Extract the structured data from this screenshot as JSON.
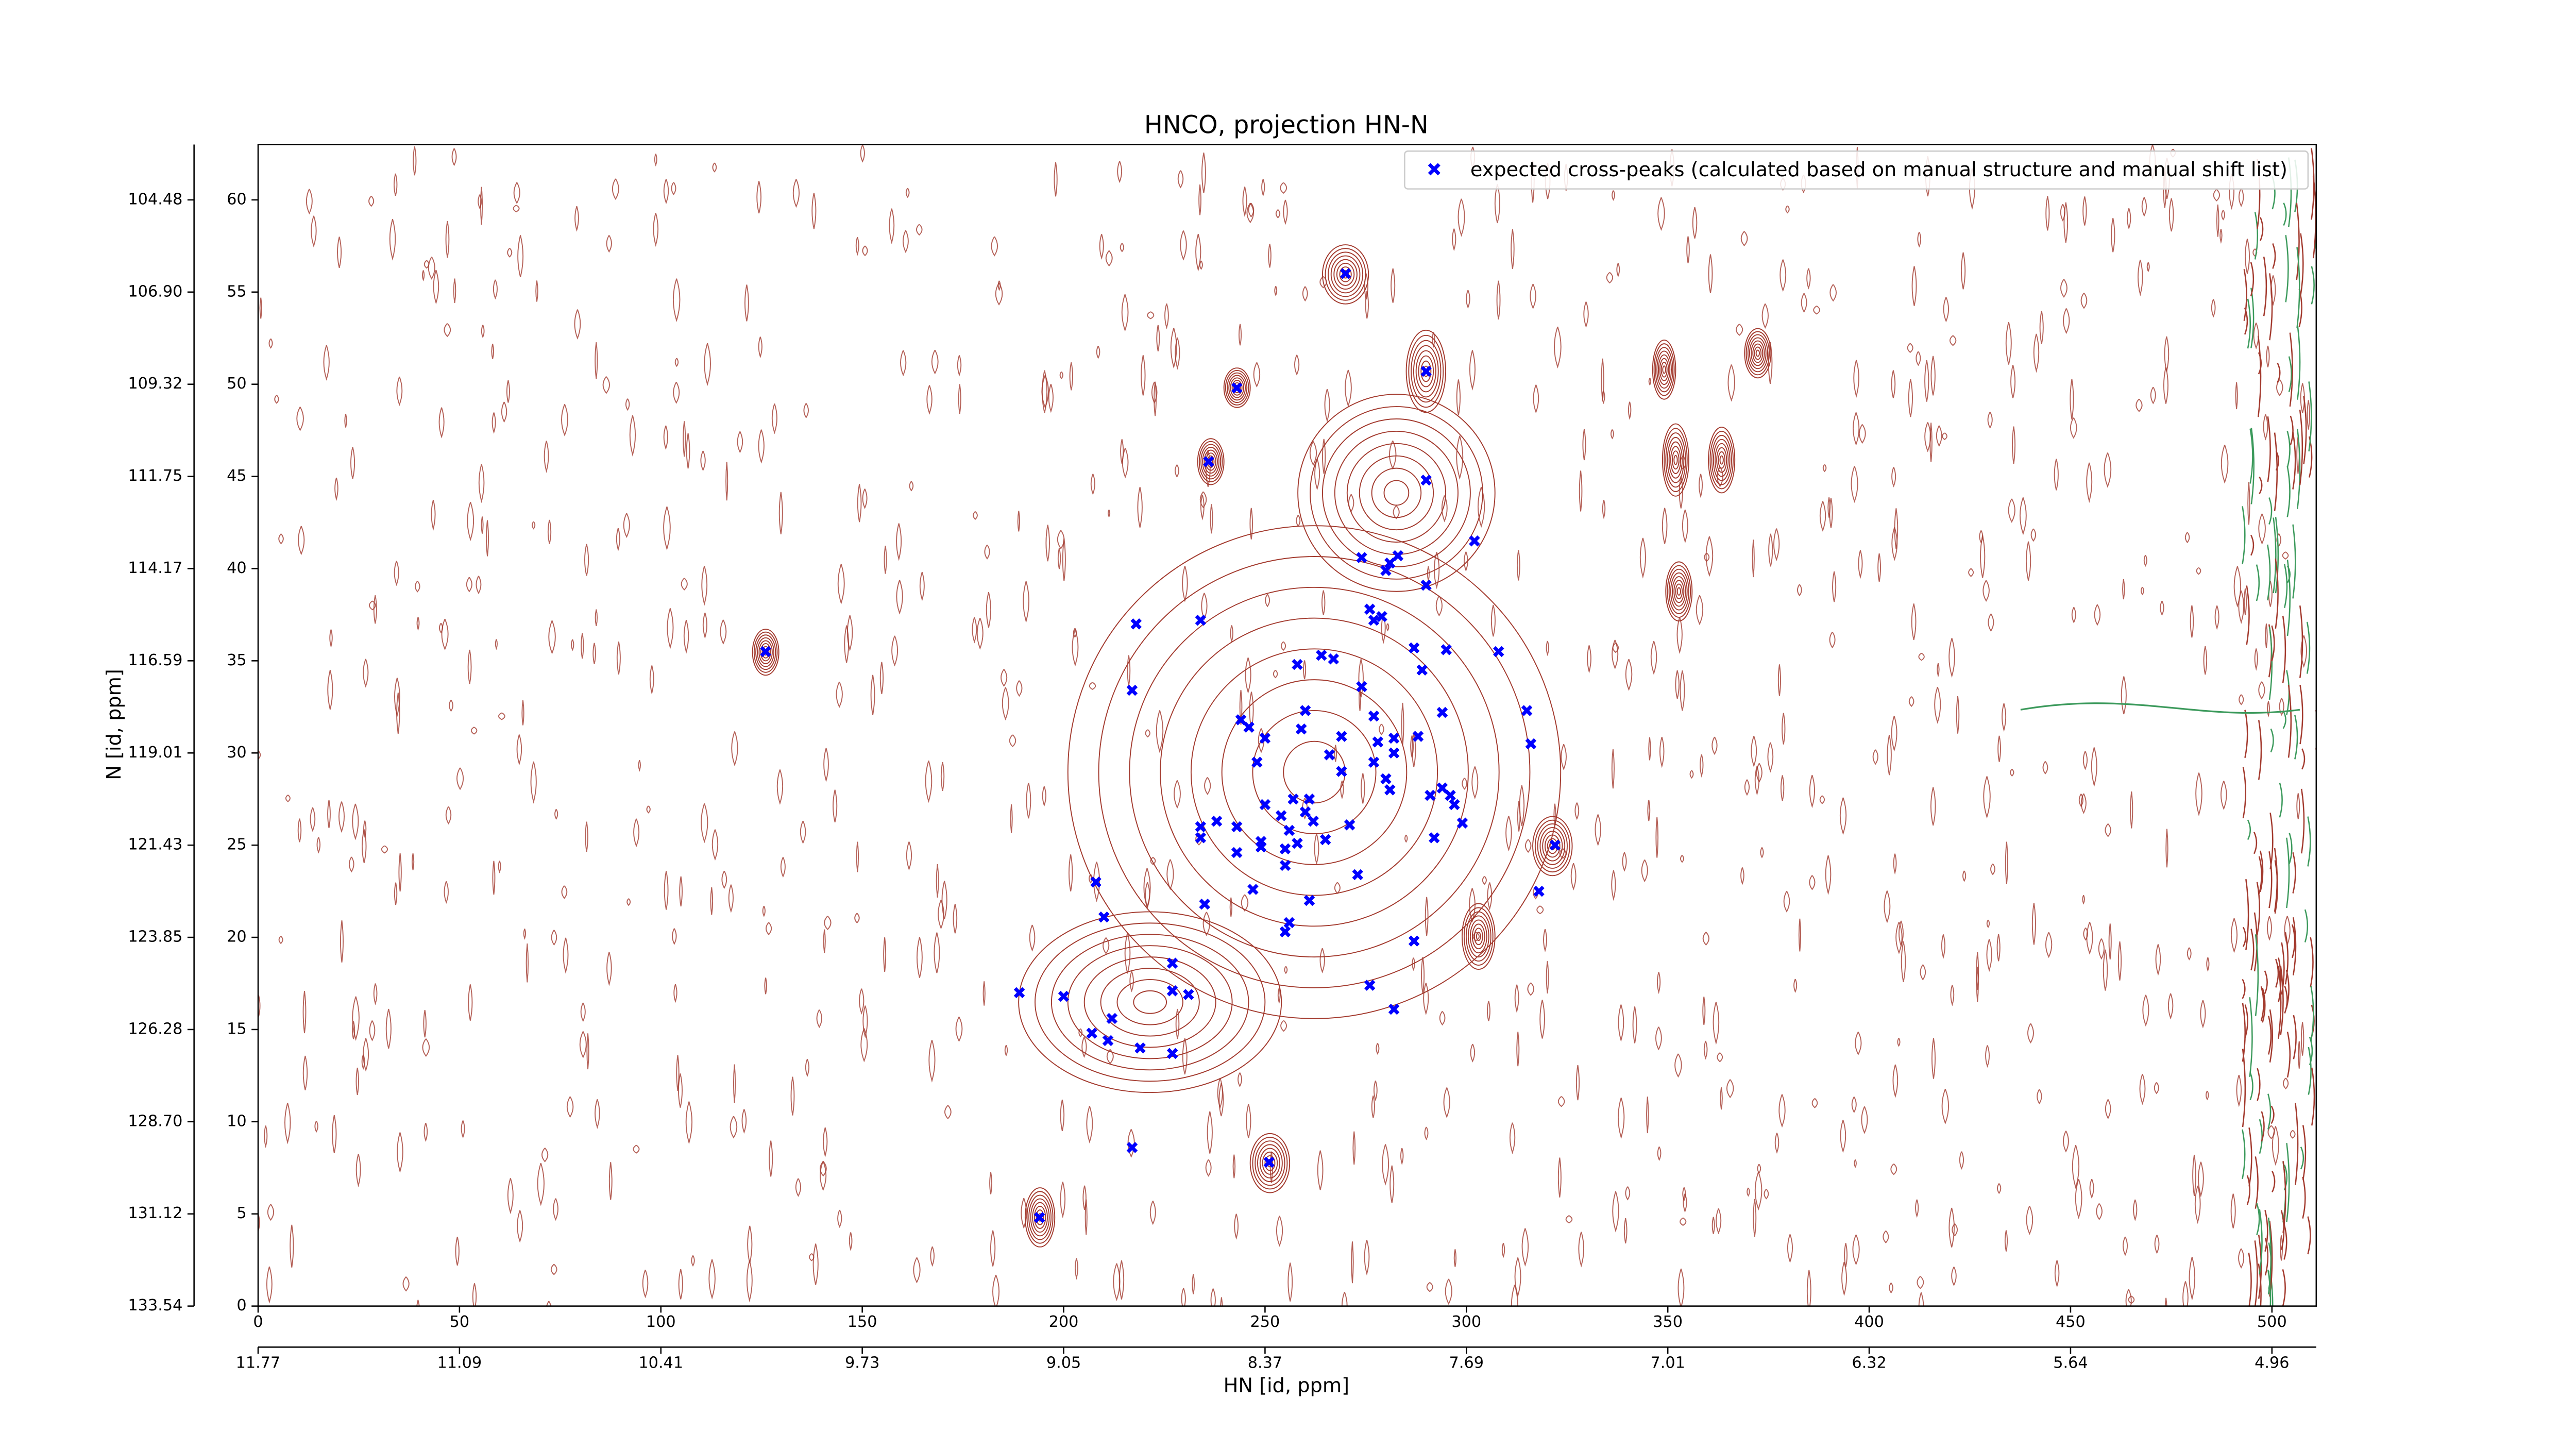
{
  "chart_data": {
    "type": "scatter",
    "title": "HNCO, projection HN-N",
    "xlabel": "HN [id, ppm]",
    "ylabel": "N [id, ppm]",
    "xlim": [
      0,
      511
    ],
    "ylim": [
      0,
      63
    ],
    "xticks": [
      0,
      50,
      100,
      150,
      200,
      250,
      300,
      350,
      400,
      450,
      500
    ],
    "yticks": [
      0,
      5,
      10,
      15,
      20,
      25,
      30,
      35,
      40,
      45,
      50,
      55,
      60
    ],
    "x2ticks": [
      {
        "value": 0,
        "label": "11.77"
      },
      {
        "value": 50,
        "label": "11.09"
      },
      {
        "value": 100,
        "label": "10.41"
      },
      {
        "value": 150,
        "label": "9.73"
      },
      {
        "value": 200,
        "label": "9.05"
      },
      {
        "value": 250,
        "label": "8.37"
      },
      {
        "value": 300,
        "label": "7.69"
      },
      {
        "value": 350,
        "label": "7.01"
      },
      {
        "value": 400,
        "label": "6.32"
      },
      {
        "value": 450,
        "label": "5.64"
      },
      {
        "value": 500,
        "label": "4.96"
      }
    ],
    "y2ticks": [
      {
        "value": 0,
        "label": "133.54"
      },
      {
        "value": 5,
        "label": "131.12"
      },
      {
        "value": 10,
        "label": "128.70"
      },
      {
        "value": 15,
        "label": "126.28"
      },
      {
        "value": 20,
        "label": "123.85"
      },
      {
        "value": 25,
        "label": "121.43"
      },
      {
        "value": 30,
        "label": "119.01"
      },
      {
        "value": 35,
        "label": "116.59"
      },
      {
        "value": 40,
        "label": "114.17"
      },
      {
        "value": 45,
        "label": "111.75"
      },
      {
        "value": 50,
        "label": "109.32"
      },
      {
        "value": 55,
        "label": "106.90"
      },
      {
        "value": 60,
        "label": "104.48"
      }
    ],
    "legend": "upper right",
    "series": [
      {
        "name": "expected cross-peaks (calculated based on manual structure and manual shift list)",
        "color": "#0000ff",
        "x": [
          126,
          270,
          290,
          243,
          236,
          290,
          302,
          274,
          283,
          281,
          280,
          290,
          276,
          277,
          279,
          218,
          234,
          308,
          264,
          267,
          287,
          295,
          258,
          289,
          217,
          274,
          244,
          246,
          260,
          277,
          294,
          315,
          259,
          278,
          282,
          269,
          288,
          316,
          250,
          282,
          248,
          266,
          269,
          277,
          280,
          281,
          294,
          291,
          297,
          250,
          257,
          261,
          260,
          296,
          238,
          254,
          262,
          299,
          234,
          243,
          256,
          271,
          234,
          249,
          249,
          258,
          265,
          292,
          322,
          243,
          255,
          255,
          273,
          208,
          247,
          318,
          235,
          261,
          210,
          256,
          255,
          287,
          227,
          189,
          200,
          227,
          231,
          276,
          282,
          212,
          207,
          211,
          219,
          227,
          217,
          251,
          194
        ],
        "y": [
          35.5,
          56,
          50.7,
          49.8,
          45.8,
          44.8,
          41.5,
          40.6,
          40.7,
          40.3,
          39.9,
          39.1,
          37.8,
          37.2,
          37.4,
          37,
          37.2,
          35.5,
          35.3,
          35.1,
          35.7,
          35.6,
          34.8,
          34.5,
          33.4,
          33.6,
          31.8,
          31.4,
          32.3,
          32,
          32.2,
          32.3,
          31.3,
          30.6,
          30.8,
          30.9,
          30.9,
          30.5,
          30.8,
          30,
          29.5,
          29.9,
          29,
          29.5,
          28.6,
          28,
          28.1,
          27.7,
          27.2,
          27.2,
          27.5,
          27.5,
          26.8,
          27.7,
          26.3,
          26.6,
          26.3,
          26.2,
          26,
          26,
          25.8,
          26.1,
          25.4,
          25.2,
          24.9,
          25.1,
          25.3,
          25.4,
          25,
          24.6,
          24.8,
          23.9,
          23.4,
          23,
          22.6,
          22.5,
          21.8,
          22,
          21.1,
          20.8,
          20.3,
          19.8,
          18.6,
          17,
          16.8,
          17.1,
          16.9,
          17.4,
          16.1,
          15.6,
          14.8,
          14.4,
          14,
          13.7,
          8.6,
          7.8,
          4.8
        ]
      }
    ]
  }
}
